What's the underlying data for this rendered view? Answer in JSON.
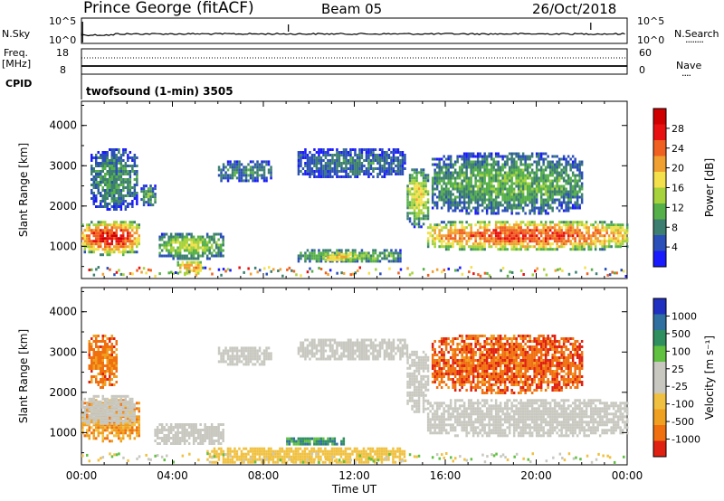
{
  "header": {
    "station": "Prince George (fitACF)",
    "beam": "Beam 05",
    "date": "26/Oct/2018"
  },
  "top_panels": {
    "nsky_label": "N.Sky",
    "nsky_ticks": [
      "10^5",
      "10^0"
    ],
    "nsearch_label": "N.Search",
    "nsearch_ticks": [
      "10^5",
      "10^0"
    ],
    "freq_label": "Freq.",
    "freq_unit": "[MHz]",
    "freq_ticks": [
      "18",
      "8"
    ],
    "nave_label": "Nave",
    "nave_ticks": [
      "60",
      "0"
    ],
    "cpid_label": "CPID",
    "cpid_value": "twofsound (1-min) 3505"
  },
  "chart_data": [
    {
      "type": "heatmap",
      "name": "power",
      "ylabel": "Slant Range [km]",
      "ylim": [
        200,
        4600
      ],
      "y_ticks": [
        "1000",
        "2000",
        "3000",
        "4000"
      ],
      "xlim_hours": [
        0,
        24
      ],
      "x_ticks": [
        "00:00",
        "04:00",
        "08:00",
        "12:00",
        "16:00",
        "20:00",
        "00:00"
      ],
      "colorbar_label": "Power [dB]",
      "colorbar_ticks": [
        "4",
        "8",
        "12",
        "16",
        "20",
        "24",
        "28"
      ],
      "colorbar_colors": [
        "#1a1aff",
        "#2b4fb8",
        "#3c7f70",
        "#56b04a",
        "#a6d23c",
        "#f4e04a",
        "#f0a030",
        "#f06020",
        "#e81010",
        "#d00000"
      ],
      "features": [
        {
          "hours": [
            0.0,
            2.5
          ],
          "range_km": [
            800,
            1700
          ],
          "level_db": 26
        },
        {
          "hours": [
            3.4,
            6.2
          ],
          "range_km": [
            700,
            1400
          ],
          "level_db": 14
        },
        {
          "hours": [
            4.2,
            5.2
          ],
          "range_km": [
            300,
            700
          ],
          "level_db": 22
        },
        {
          "hours": [
            9.5,
            14.0
          ],
          "range_km": [
            600,
            1000
          ],
          "level_db": 12
        },
        {
          "hours": [
            10.5,
            12.0
          ],
          "range_km": [
            650,
            900
          ],
          "level_db": 20
        },
        {
          "hours": [
            14.3,
            15.2
          ],
          "range_km": [
            1500,
            3000
          ],
          "level_db": 16
        },
        {
          "hours": [
            15.2,
            24.0
          ],
          "range_km": [
            900,
            1700
          ],
          "level_db": 24
        },
        {
          "hours": [
            6.0,
            8.3
          ],
          "range_km": [
            2600,
            3200
          ],
          "level_db": 8
        },
        {
          "hours": [
            9.5,
            14.2
          ],
          "range_km": [
            2700,
            3500
          ],
          "level_db": 7
        },
        {
          "hours": [
            0.4,
            2.4
          ],
          "range_km": [
            1900,
            3500
          ],
          "level_db": 9
        },
        {
          "hours": [
            2.6,
            3.2
          ],
          "range_km": [
            2000,
            2600
          ],
          "level_db": 10
        },
        {
          "hours": [
            15.4,
            22.0
          ],
          "range_km": [
            1800,
            3400
          ],
          "level_db": 11
        }
      ]
    },
    {
      "type": "heatmap",
      "name": "velocity",
      "ylabel": "Slant Range [km]",
      "ylim": [
        200,
        4600
      ],
      "y_ticks": [
        "1000",
        "2000",
        "3000",
        "4000"
      ],
      "xlim_hours": [
        0,
        24
      ],
      "x_ticks": [
        "00:00",
        "04:00",
        "08:00",
        "12:00",
        "16:00",
        "20:00",
        "00:00"
      ],
      "xlabel": "Time UT",
      "colorbar_label": "Velocity [m s⁻¹]",
      "colorbar_ticks": [
        "1000",
        "500",
        "100",
        "25",
        "-25",
        "-100",
        "-500",
        "-1000"
      ],
      "colorbar_colors": [
        "#2030c0",
        "#3070a0",
        "#2f8f5f",
        "#60c040",
        "#c8c8c0",
        "#c8c8c0",
        "#f0c040",
        "#f0a020",
        "#f07010",
        "#e02010"
      ],
      "features": [
        {
          "hours": [
            0.0,
            2.5
          ],
          "range_km": [
            800,
            1900
          ],
          "velocity": -300
        },
        {
          "hours": [
            0.0,
            2.3
          ],
          "range_km": [
            1200,
            2000
          ],
          "velocity": 0
        },
        {
          "hours": [
            3.2,
            6.2
          ],
          "range_km": [
            700,
            1300
          ],
          "velocity": 0
        },
        {
          "hours": [
            5.5,
            14.2
          ],
          "range_km": [
            250,
            700
          ],
          "velocity": -100
        },
        {
          "hours": [
            9.0,
            11.5
          ],
          "range_km": [
            700,
            950
          ],
          "velocity": 300
        },
        {
          "hours": [
            6.0,
            8.3
          ],
          "range_km": [
            2700,
            3200
          ],
          "velocity": 0
        },
        {
          "hours": [
            9.5,
            14.3
          ],
          "range_km": [
            2800,
            3400
          ],
          "velocity": 0
        },
        {
          "hours": [
            14.3,
            15.2
          ],
          "range_km": [
            1500,
            3100
          ],
          "velocity": 0
        },
        {
          "hours": [
            15.2,
            24.0
          ],
          "range_km": [
            900,
            1900
          ],
          "velocity": 0
        },
        {
          "hours": [
            15.4,
            22.0
          ],
          "range_km": [
            2000,
            3500
          ],
          "velocity": -600
        },
        {
          "hours": [
            0.3,
            1.5
          ],
          "range_km": [
            2100,
            3500
          ],
          "velocity": -500
        }
      ]
    }
  ]
}
